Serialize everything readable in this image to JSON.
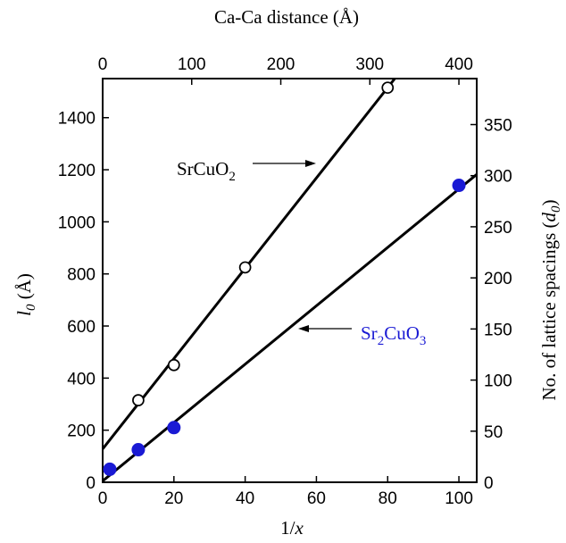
{
  "chart_data": {
    "type": "scatter",
    "x_bottom": {
      "label_main": "1/",
      "label_italic": "x",
      "range": [
        0,
        105
      ],
      "ticks": [
        0,
        20,
        40,
        60,
        80,
        100
      ]
    },
    "x_top": {
      "label": "Ca-Ca distance (Å)",
      "range": [
        0,
        420
      ],
      "ticks": [
        0,
        100,
        200,
        300,
        400
      ]
    },
    "y_left": {
      "label_base": "l",
      "label_sub": "0",
      "label_unit": " (Å)",
      "range": [
        0,
        1550
      ],
      "ticks": [
        0,
        200,
        400,
        600,
        800,
        1000,
        1200,
        1400
      ]
    },
    "y_right": {
      "label_main": "No. of lattice spacings (",
      "label_var": "d",
      "label_sub": "0",
      "label_close": ")",
      "range": [
        0,
        395
      ],
      "ticks": [
        0,
        50,
        100,
        150,
        200,
        250,
        300,
        350
      ]
    },
    "series": [
      {
        "label_parts": [
          "SrCuO",
          "2",
          ""
        ],
        "label_color": "#000000",
        "marker": "open-circle",
        "color": "#000000",
        "x": [
          10,
          20,
          40,
          80
        ],
        "y": [
          315,
          450,
          825,
          1515
        ],
        "fit_line": {
          "x": [
            0,
            82
          ],
          "y": [
            128,
            1550
          ]
        }
      },
      {
        "label_parts": [
          "Sr",
          "2",
          "CuO",
          "3"
        ],
        "label_color": "#1a1ad4",
        "marker": "filled-circle",
        "color": "#1a1ad4",
        "x": [
          2,
          10,
          20,
          100
        ],
        "y": [
          50,
          125,
          210,
          1140
        ],
        "fit_line": {
          "x": [
            0,
            105
          ],
          "y": [
            5,
            1182
          ]
        }
      }
    ],
    "grid": false,
    "legend": "none"
  }
}
